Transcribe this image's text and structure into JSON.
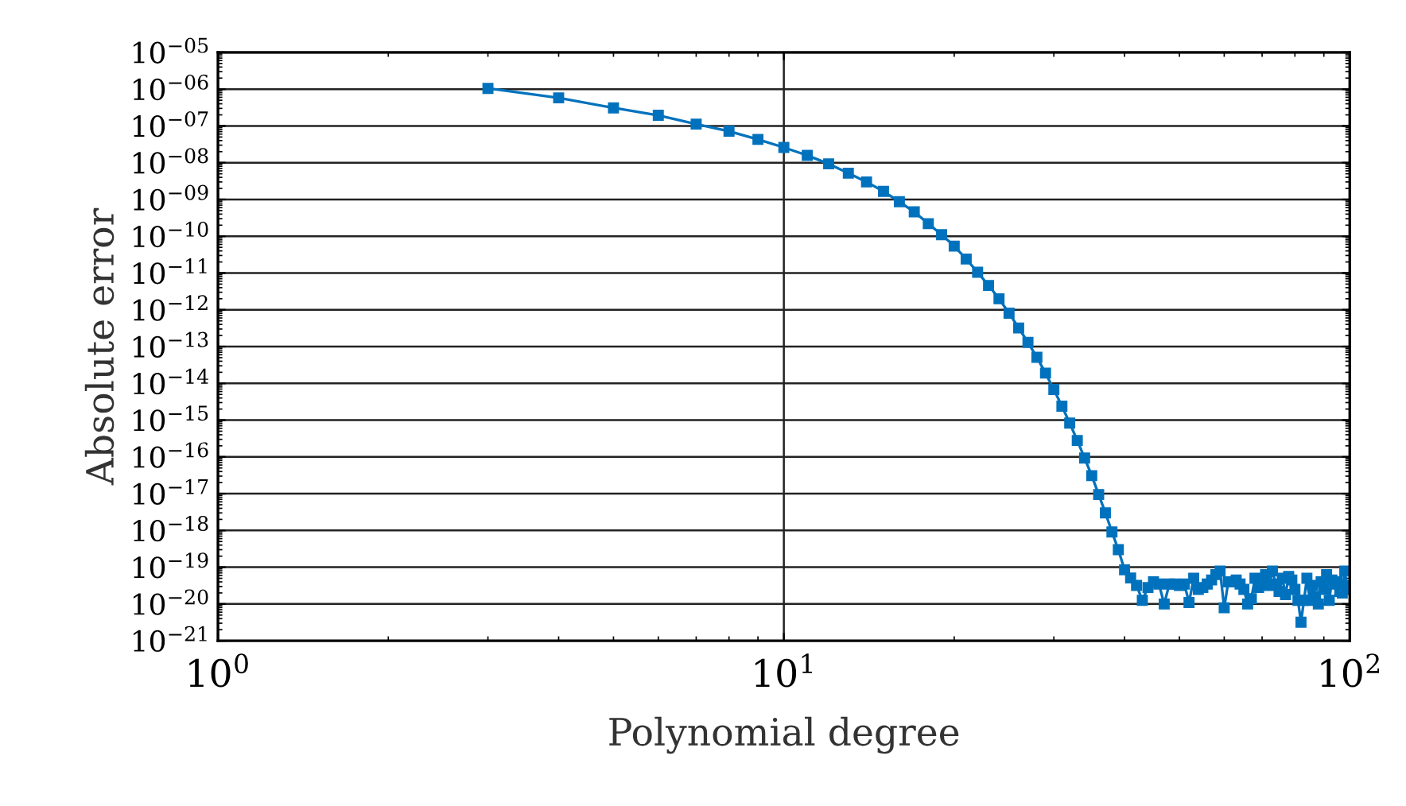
{
  "chart_data": {
    "type": "line",
    "xlabel": "Polynomial degree",
    "ylabel": "Absolute error",
    "log": "xy",
    "grid": true,
    "marker": "square",
    "line_style": "solid",
    "xlim": [
      1,
      100
    ],
    "xticks": [
      {
        "value": 1,
        "label": "10$^{0}$"
      },
      {
        "value": 10,
        "label": "10$^{1}$"
      },
      {
        "value": 100,
        "label": "10$^{2}$"
      }
    ],
    "ylim": [
      1e-21,
      1e-05
    ],
    "yticks": [
      {
        "value": 1e-21,
        "label": "10$^{−21}$"
      },
      {
        "value": 1e-20,
        "label": "10$^{−20}$"
      },
      {
        "value": 1e-19,
        "label": "10$^{−19}$"
      },
      {
        "value": 1e-18,
        "label": "10$^{−18}$"
      },
      {
        "value": 1e-17,
        "label": "10$^{−17}$"
      },
      {
        "value": 1e-16,
        "label": "10$^{−16}$"
      },
      {
        "value": 1e-15,
        "label": "10$^{−15}$"
      },
      {
        "value": 1e-14,
        "label": "10$^{−14}$"
      },
      {
        "value": 1e-13,
        "label": "10$^{−13}$"
      },
      {
        "value": 1e-12,
        "label": "10$^{−12}$"
      },
      {
        "value": 1e-11,
        "label": "10$^{−11}$"
      },
      {
        "value": 1e-10,
        "label": "10$^{−10}$"
      },
      {
        "value": 1e-09,
        "label": "10$^{−09}$"
      },
      {
        "value": 1e-08,
        "label": "10$^{−08}$"
      },
      {
        "value": 1e-07,
        "label": "10$^{−07}$"
      },
      {
        "value": 1e-06,
        "label": "10$^{−06}$"
      },
      {
        "value": 1e-05,
        "label": "10$^{−05}$"
      }
    ],
    "x": [
      3,
      4,
      5,
      6,
      7,
      8,
      9,
      10,
      11,
      12,
      13,
      14,
      15,
      16,
      17,
      18,
      19,
      20,
      21,
      22,
      23,
      24,
      25,
      26,
      27,
      28,
      29,
      30,
      31,
      32,
      33,
      34,
      35,
      36,
      37,
      38,
      39,
      40,
      41,
      42,
      43,
      44,
      45,
      46,
      47,
      48,
      49,
      50,
      51,
      52,
      53,
      54,
      55,
      56,
      57,
      58,
      59,
      60,
      61,
      62,
      63,
      64,
      65,
      66,
      67,
      68,
      69,
      70,
      71,
      72,
      73,
      74,
      75,
      76,
      77,
      78,
      79,
      80,
      81,
      82,
      83,
      84,
      85,
      86,
      87,
      88,
      89,
      90,
      91,
      92,
      93,
      94,
      95,
      96,
      97,
      98,
      99,
      100
    ],
    "series": [
      {
        "color": "#0072bd",
        "values": [
          1.05e-06,
          5.8e-07,
          3.1e-07,
          1.95e-07,
          1.12e-07,
          7.2e-08,
          4.3e-08,
          2.6e-08,
          1.58e-08,
          9.3e-09,
          5.2e-09,
          3e-09,
          1.66e-09,
          8.7e-10,
          4.6e-10,
          2.2e-10,
          1.1e-10,
          5.4e-11,
          2.4e-11,
          1.05e-11,
          4.6e-12,
          2e-12,
          8.1e-13,
          3.2e-13,
          1.3e-13,
          5.1e-14,
          1.9e-14,
          6.8e-15,
          2.4e-15,
          8.3e-16,
          2.8e-16,
          9.3e-17,
          3.1e-17,
          9.5e-18,
          3e-18,
          9.1e-19,
          3e-19,
          8.5e-20,
          5.1e-20,
          3.2e-20,
          1.26e-20,
          2.8e-20,
          4e-20,
          3.5e-20,
          1e-20,
          3.5e-20,
          3.5e-20,
          3.2e-20,
          3.5e-20,
          1.1e-20,
          5e-20,
          2.5e-20,
          2.8e-20,
          3.5e-20,
          4.5e-20,
          6.3e-20,
          7.9e-20,
          7.9e-21,
          4e-20,
          4e-20,
          4.5e-20,
          3.5e-20,
          2.5e-20,
          1e-20,
          1.4e-20,
          5e-20,
          2.8e-20,
          4e-20,
          6.3e-20,
          3.2e-20,
          7.9e-20,
          3.5e-20,
          2.2e-20,
          5e-20,
          1.8e-20,
          5.6e-20,
          4.5e-20,
          2.5e-20,
          1.26e-20,
          3.2e-21,
          1.26e-20,
          5e-20,
          1.26e-20,
          3.2e-20,
          1.6e-20,
          1e-20,
          4e-20,
          2.5e-20,
          6.3e-20,
          1.26e-20,
          4.5e-20,
          3.5e-20,
          4e-20,
          2.2e-20,
          2e-20,
          7.9e-20,
          2.5e-20,
          3.2e-20
        ]
      }
    ]
  }
}
